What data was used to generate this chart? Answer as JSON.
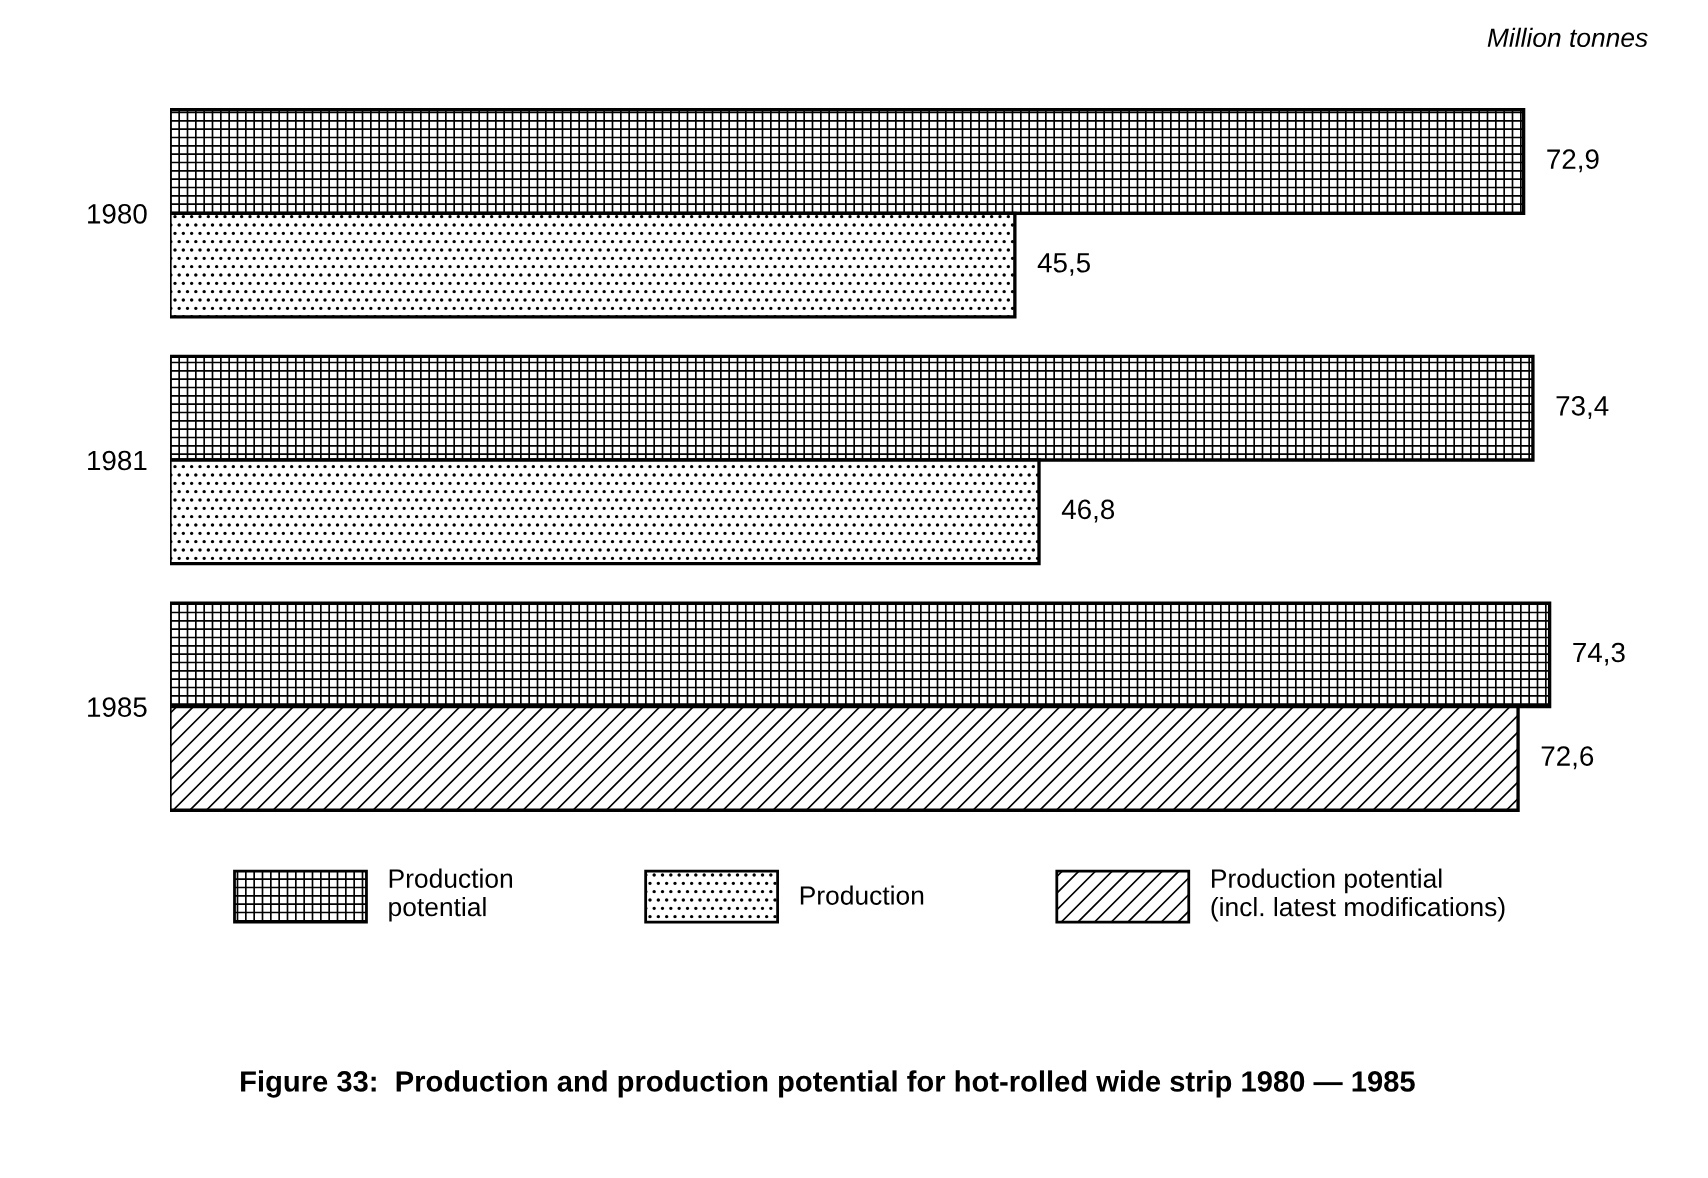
{
  "chart_data": {
    "type": "bar",
    "orientation": "horizontal",
    "title": "Figure 33:  Production and production potential for hot-rolled wide strip 1980 — 1985",
    "annotations": [
      "Million tonnes"
    ],
    "categories": [
      "1980",
      "1981",
      "1985"
    ],
    "series": [
      {
        "name": "Production\npotential",
        "color": "#000000",
        "values": [
          72.9,
          73.4,
          74.3
        ],
        "value_labels": [
          "72,9",
          "73,4",
          "74,3"
        ]
      },
      {
        "name": "Production",
        "color": "#000000",
        "values": [
          45.5,
          46.8,
          null
        ],
        "value_labels": [
          "45,5",
          "46,8",
          null
        ]
      },
      {
        "name": "Production potential\n(incl. latest modifications)",
        "color": "#000000",
        "values": [
          null,
          null,
          72.6
        ],
        "value_labels": [
          null,
          null,
          "72,6"
        ]
      }
    ],
    "legend": "bottom",
    "grid": false
  }
}
